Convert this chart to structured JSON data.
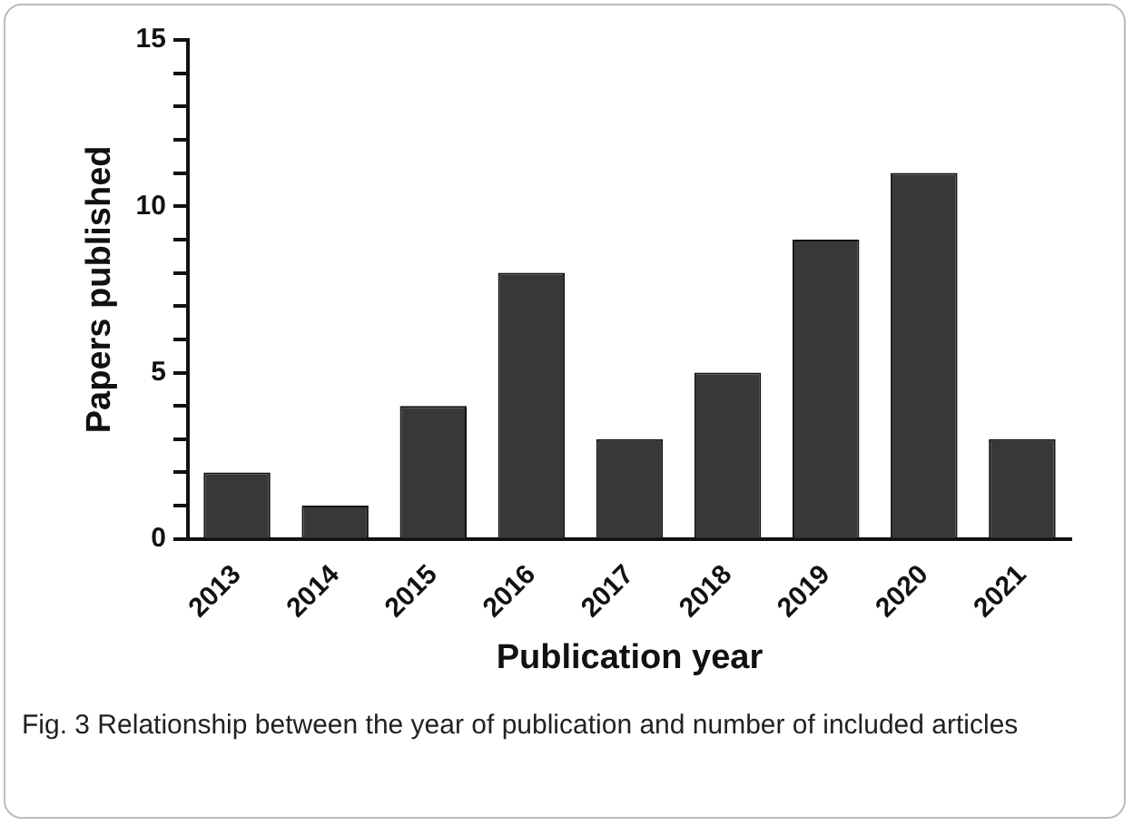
{
  "chart_data": {
    "type": "bar",
    "xlabel": "Publication year",
    "ylabel": "Papers published",
    "categories": [
      "2013",
      "2014",
      "2015",
      "2016",
      "2017",
      "2018",
      "2019",
      "2020",
      "2021"
    ],
    "values": [
      2,
      1,
      4,
      8,
      3,
      5,
      9,
      11,
      3
    ],
    "color": "#383838",
    "ylim": [
      0,
      15
    ],
    "yticks": [
      0,
      {
        "value": 1,
        "label": null
      },
      {
        "value": 2,
        "label": null
      },
      {
        "value": 3,
        "label": null
      },
      {
        "value": 4,
        "label": null
      },
      5,
      {
        "value": 6,
        "label": null
      },
      {
        "value": 7,
        "label": null
      },
      {
        "value": 8,
        "label": null
      },
      {
        "value": 9,
        "label": null
      },
      10,
      {
        "value": 11,
        "label": null
      },
      {
        "value": 12,
        "label": null
      },
      {
        "value": 13,
        "label": null
      },
      {
        "value": 14,
        "label": null
      },
      15
    ],
    "grid": false,
    "legend": false,
    "annotations": [
      "Fig. 3  Relationship between the year of publication and number of included articles"
    ]
  }
}
